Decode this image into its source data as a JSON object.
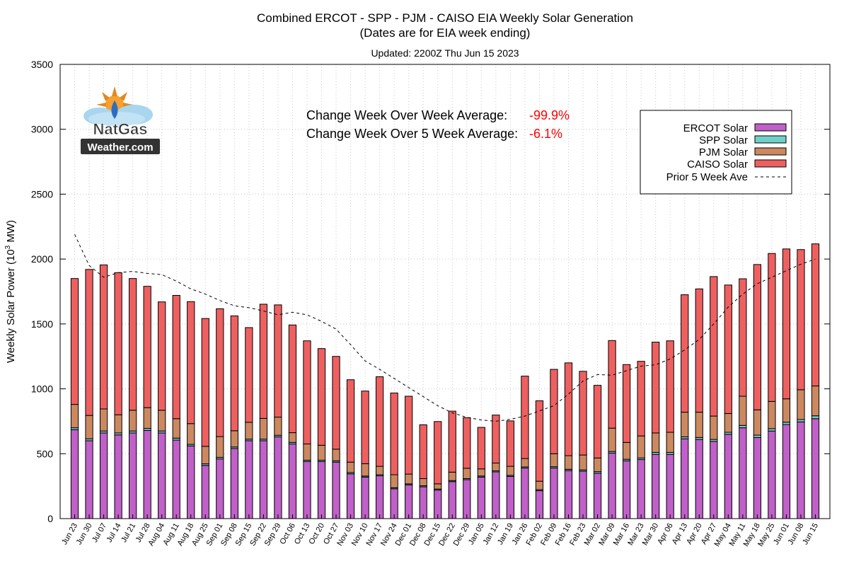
{
  "chart_data": {
    "type": "bar",
    "title": "Combined ERCOT - SPP - PJM - CAISO EIA Weekly Solar Generation",
    "subtitle": "(Dates are for EIA week ending)",
    "updated": "Updated: 2200Z Thu Jun 15 2023",
    "ylabel_main": "Weekly Solar Power (10",
    "ylabel_sup": "3",
    "ylabel_tail": " MW)",
    "ylim": [
      0,
      3500
    ],
    "yticks": [
      0,
      500,
      1000,
      1500,
      2000,
      2500,
      3000,
      3500
    ],
    "grid": true,
    "stacked": true,
    "legend_position": "top-right",
    "categories": [
      "Jun 23",
      "Jun 30",
      "Jul 07",
      "Jul 14",
      "Jul 21",
      "Jul 28",
      "Aug 04",
      "Aug 11",
      "Aug 18",
      "Aug 25",
      "Sep 01",
      "Sep 08",
      "Sep 15",
      "Sep 22",
      "Sep 29",
      "Oct 06",
      "Oct 13",
      "Oct 20",
      "Oct 27",
      "Nov 03",
      "Nov 10",
      "Nov 17",
      "Nov 24",
      "Dec 01",
      "Dec 08",
      "Dec 15",
      "Dec 22",
      "Dec 29",
      "Jan 05",
      "Jan 12",
      "Jan 19",
      "Jan 26",
      "Feb 02",
      "Feb 09",
      "Feb 16",
      "Feb 23",
      "Mar 02",
      "Mar 09",
      "Mar 16",
      "Mar 23",
      "Mar 30",
      "Apr 06",
      "Apr 13",
      "Apr 20",
      "Apr 27",
      "May 04",
      "May 11",
      "May 18",
      "May 25",
      "Jun 01",
      "Jun 08",
      "Jun 15"
    ],
    "series": [
      {
        "name": "ERCOT Solar",
        "color": "#c060c8",
        "values": [
          685,
          600,
          660,
          645,
          660,
          680,
          660,
          605,
          560,
          410,
          460,
          540,
          600,
          600,
          630,
          575,
          440,
          440,
          435,
          345,
          320,
          330,
          230,
          260,
          245,
          220,
          285,
          300,
          320,
          360,
          325,
          390,
          215,
          390,
          370,
          365,
          350,
          505,
          445,
          455,
          495,
          495,
          615,
          610,
          595,
          650,
          700,
          625,
          675,
          725,
          745,
          770
        ]
      },
      {
        "name": "SPP Solar",
        "color": "#70d0c8",
        "values": [
          15,
          15,
          15,
          15,
          15,
          15,
          15,
          15,
          12,
          12,
          12,
          12,
          12,
          12,
          12,
          12,
          10,
          10,
          10,
          10,
          8,
          8,
          8,
          8,
          8,
          8,
          8,
          8,
          8,
          8,
          8,
          8,
          8,
          10,
          10,
          10,
          12,
          12,
          12,
          12,
          15,
          15,
          15,
          15,
          15,
          15,
          18,
          18,
          18,
          18,
          18,
          22
        ]
      },
      {
        "name": "PJM Solar",
        "color": "#cc8860",
        "values": [
          180,
          180,
          170,
          140,
          160,
          160,
          160,
          150,
          160,
          135,
          160,
          125,
          130,
          160,
          140,
          75,
          125,
          115,
          90,
          80,
          95,
          65,
          100,
          75,
          55,
          40,
          65,
          80,
          55,
          60,
          70,
          65,
          65,
          100,
          105,
          115,
          105,
          180,
          130,
          170,
          150,
          155,
          190,
          195,
          180,
          145,
          225,
          195,
          210,
          180,
          230,
          230
        ]
      },
      {
        "name": "CAISO Solar",
        "color": "#ee6060",
        "values": [
          970,
          1125,
          1110,
          1095,
          1015,
          935,
          835,
          950,
          940,
          985,
          985,
          885,
          730,
          880,
          865,
          830,
          795,
          745,
          715,
          635,
          560,
          690,
          630,
          600,
          415,
          480,
          470,
          390,
          320,
          370,
          350,
          635,
          620,
          650,
          715,
          645,
          560,
          675,
          600,
          575,
          700,
          705,
          905,
          950,
          1075,
          990,
          905,
          1120,
          1140,
          1155,
          1080,
          1095
        ]
      }
    ],
    "line": {
      "name": "Prior 5 Week Ave",
      "values": [
        2190,
        1950,
        1860,
        1895,
        1905,
        1890,
        1880,
        1830,
        1770,
        1730,
        1680,
        1640,
        1625,
        1600,
        1570,
        1590,
        1570,
        1520,
        1460,
        1340,
        1215,
        1150,
        1080,
        1010,
        940,
        870,
        815,
        780,
        760,
        750,
        765,
        790,
        830,
        870,
        960,
        1060,
        1110,
        1105,
        1140,
        1175,
        1185,
        1230,
        1300,
        1380,
        1500,
        1630,
        1730,
        1810,
        1860,
        1910,
        1960,
        2000
      ]
    },
    "annotations": [
      {
        "label": "Change Week Over Week Average:",
        "value": "-99.9%"
      },
      {
        "label": "Change Week Over 5 Week Average:",
        "value": "-6.1%"
      }
    ],
    "logo_lines": [
      "NatGas",
      "Weather.com"
    ]
  }
}
